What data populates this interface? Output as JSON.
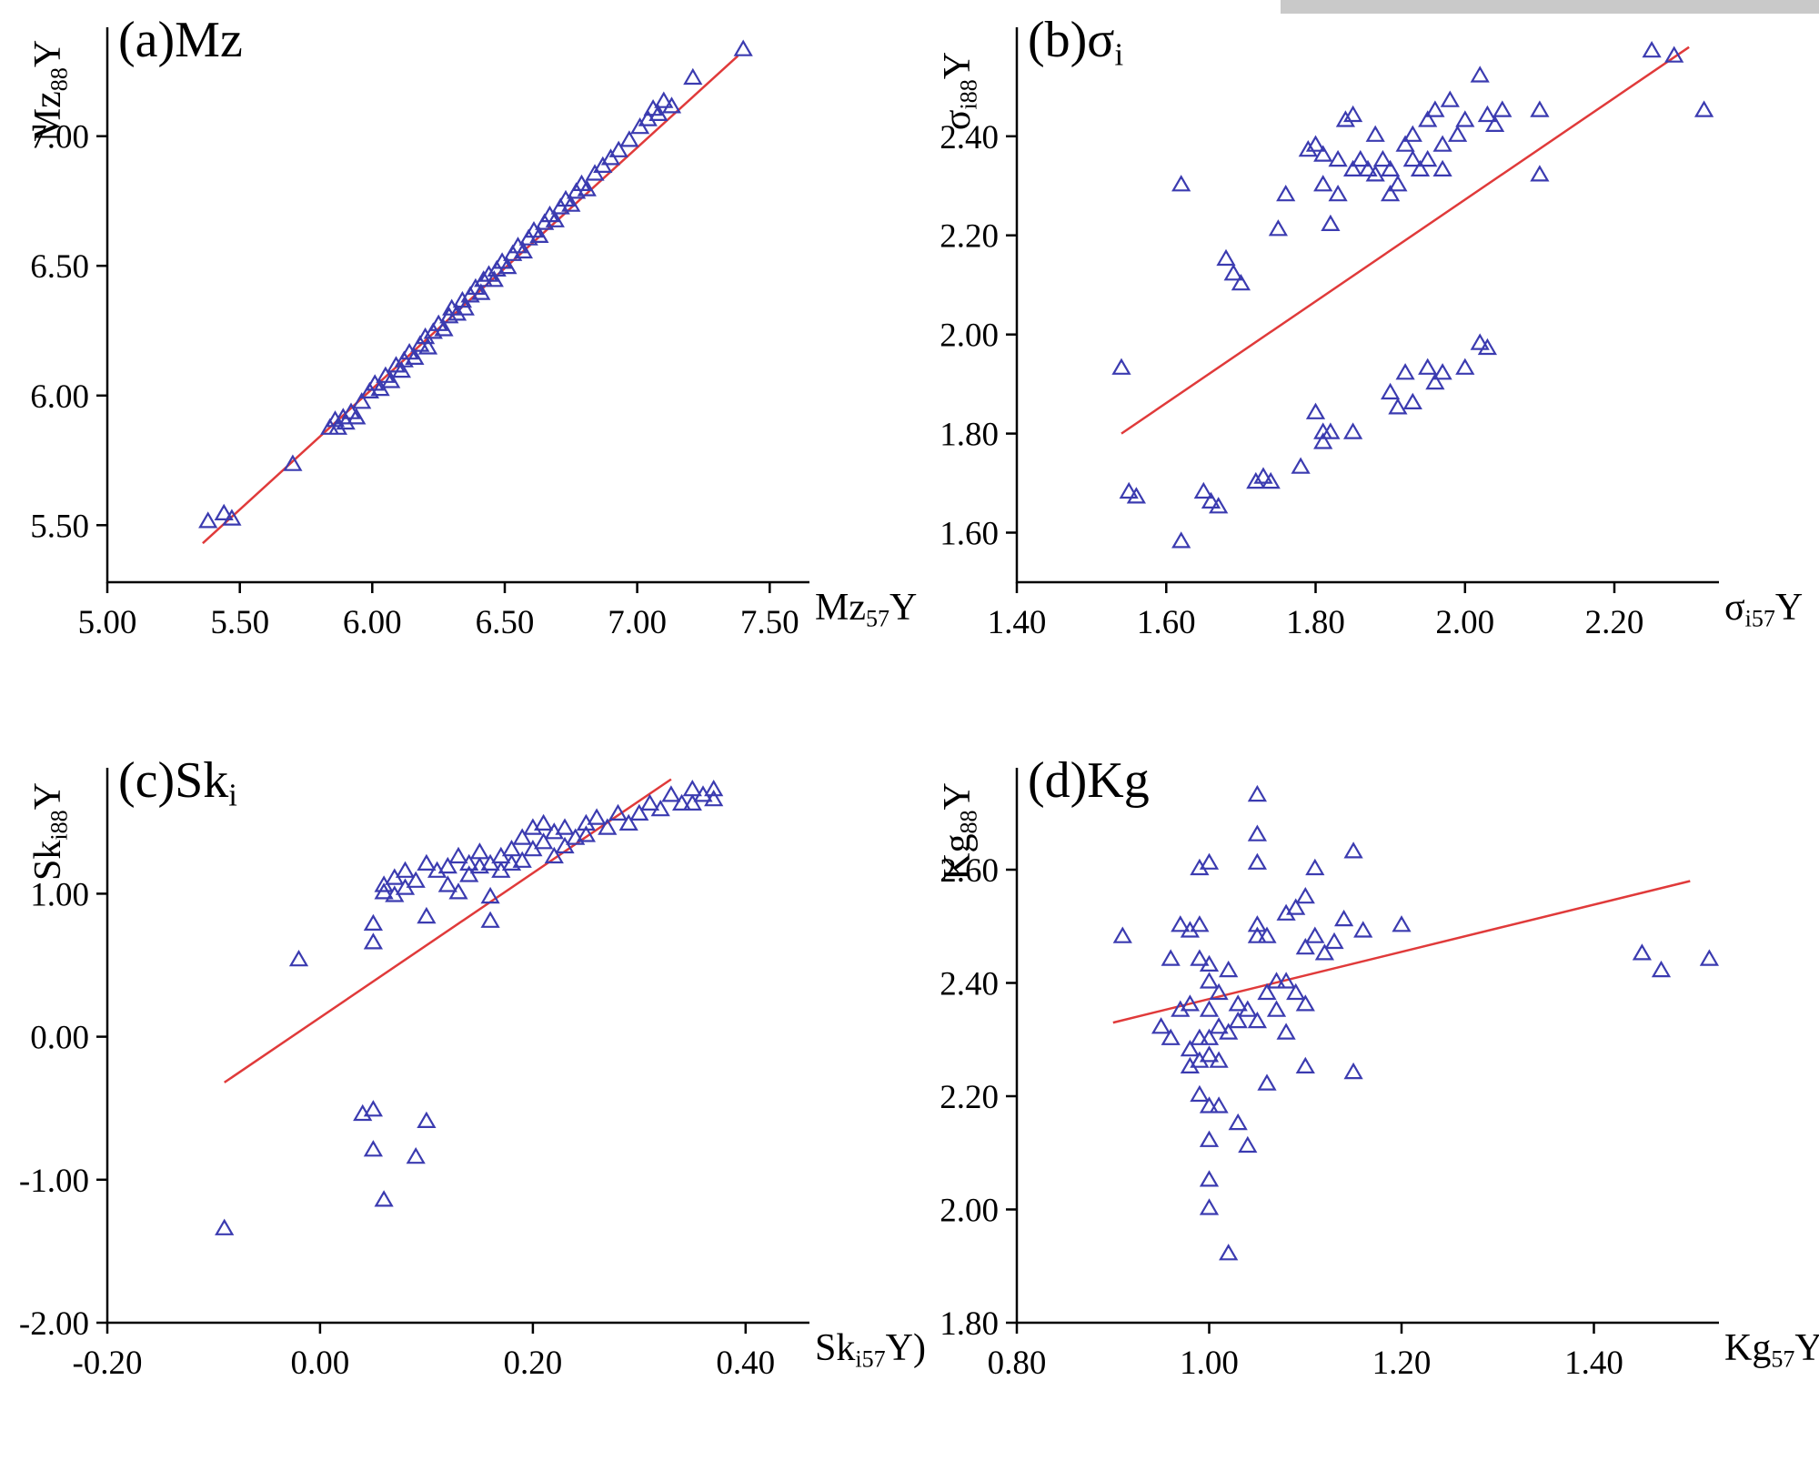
{
  "page": {
    "background": "#ffffff",
    "artifact_bar_color": "#c9c9c9"
  },
  "chart_data": [
    {
      "id": "a",
      "type": "scatter",
      "panel_label": {
        "pre": "(a)Mz",
        "sub": "",
        "post": ""
      },
      "xlabel": {
        "pre": "Mz",
        "sub": "57",
        "post": "Y"
      },
      "ylabel": {
        "pre": "Mz",
        "sub": "88",
        "post": "Y"
      },
      "xlim": [
        5.0,
        7.65
      ],
      "ylim": [
        5.28,
        7.42
      ],
      "xticks": {
        "values": [
          5.0,
          5.5,
          6.0,
          6.5,
          7.0,
          7.5
        ],
        "labels": [
          "5.00",
          "5.50",
          "6.00",
          "6.50",
          "7.00",
          "7.50"
        ]
      },
      "yticks": {
        "values": [
          5.5,
          6.0,
          6.5,
          7.0
        ],
        "labels": [
          "5.50",
          "6.00",
          "6.50",
          "7.00"
        ]
      },
      "trendline": {
        "x1": 5.36,
        "y1": 5.43,
        "x2": 7.38,
        "y2": 7.31
      },
      "marker_color": "#3b3bb0",
      "line_color": "#e03a3a",
      "points": [
        [
          5.38,
          5.51
        ],
        [
          5.44,
          5.54
        ],
        [
          5.47,
          5.52
        ],
        [
          5.7,
          5.73
        ],
        [
          5.84,
          5.87
        ],
        [
          5.86,
          5.9
        ],
        [
          5.87,
          5.87
        ],
        [
          5.89,
          5.91
        ],
        [
          5.9,
          5.89
        ],
        [
          5.92,
          5.93
        ],
        [
          5.94,
          5.91
        ],
        [
          5.96,
          5.97
        ],
        [
          5.99,
          6.01
        ],
        [
          6.01,
          6.04
        ],
        [
          6.03,
          6.02
        ],
        [
          6.05,
          6.07
        ],
        [
          6.07,
          6.05
        ],
        [
          6.09,
          6.11
        ],
        [
          6.11,
          6.09
        ],
        [
          6.12,
          6.13
        ],
        [
          6.14,
          6.16
        ],
        [
          6.16,
          6.14
        ],
        [
          6.18,
          6.19
        ],
        [
          6.2,
          6.22
        ],
        [
          6.21,
          6.18
        ],
        [
          6.23,
          6.24
        ],
        [
          6.25,
          6.27
        ],
        [
          6.27,
          6.25
        ],
        [
          6.29,
          6.3
        ],
        [
          6.3,
          6.33
        ],
        [
          6.32,
          6.31
        ],
        [
          6.34,
          6.36
        ],
        [
          6.35,
          6.33
        ],
        [
          6.37,
          6.38
        ],
        [
          6.39,
          6.41
        ],
        [
          6.41,
          6.39
        ],
        [
          6.42,
          6.44
        ],
        [
          6.44,
          6.46
        ],
        [
          6.46,
          6.44
        ],
        [
          6.47,
          6.48
        ],
        [
          6.49,
          6.51
        ],
        [
          6.51,
          6.49
        ],
        [
          6.53,
          6.54
        ],
        [
          6.55,
          6.57
        ],
        [
          6.57,
          6.55
        ],
        [
          6.59,
          6.6
        ],
        [
          6.61,
          6.63
        ],
        [
          6.63,
          6.61
        ],
        [
          6.65,
          6.66
        ],
        [
          6.67,
          6.69
        ],
        [
          6.69,
          6.67
        ],
        [
          6.71,
          6.72
        ],
        [
          6.73,
          6.75
        ],
        [
          6.75,
          6.73
        ],
        [
          6.77,
          6.78
        ],
        [
          6.79,
          6.81
        ],
        [
          6.81,
          6.79
        ],
        [
          6.84,
          6.85
        ],
        [
          6.87,
          6.88
        ],
        [
          6.9,
          6.91
        ],
        [
          6.93,
          6.94
        ],
        [
          6.97,
          6.98
        ],
        [
          7.01,
          7.03
        ],
        [
          7.04,
          7.06
        ],
        [
          7.06,
          7.1
        ],
        [
          7.08,
          7.08
        ],
        [
          7.1,
          7.13
        ],
        [
          7.13,
          7.11
        ],
        [
          7.21,
          7.22
        ],
        [
          7.4,
          7.33
        ]
      ]
    },
    {
      "id": "b",
      "type": "scatter",
      "panel_label": {
        "pre": "(b)σ",
        "sub": "i",
        "post": ""
      },
      "xlabel": {
        "pre": "σ",
        "sub": "i57",
        "post": "Y"
      },
      "ylabel": {
        "pre": "σ",
        "sub": "i88",
        "post": "Y"
      },
      "xlim": [
        1.4,
        2.34
      ],
      "ylim": [
        1.5,
        2.62
      ],
      "xticks": {
        "values": [
          1.4,
          1.6,
          1.8,
          2.0,
          2.2
        ],
        "labels": [
          "1.40",
          "1.60",
          "1.80",
          "2.00",
          "2.20"
        ]
      },
      "yticks": {
        "values": [
          1.6,
          1.8,
          2.0,
          2.2,
          2.4
        ],
        "labels": [
          "1.60",
          "1.80",
          "2.00",
          "2.20",
          "2.40"
        ]
      },
      "trendline": {
        "x1": 1.54,
        "y1": 1.8,
        "x2": 2.3,
        "y2": 2.58
      },
      "marker_color": "#3b3bb0",
      "line_color": "#e03a3a",
      "points": [
        [
          1.62,
          2.3
        ],
        [
          1.68,
          2.15
        ],
        [
          1.69,
          2.12
        ],
        [
          1.7,
          2.1
        ],
        [
          1.75,
          2.21
        ],
        [
          1.76,
          2.28
        ],
        [
          1.79,
          2.37
        ],
        [
          1.8,
          2.38
        ],
        [
          1.81,
          2.36
        ],
        [
          1.81,
          2.3
        ],
        [
          1.82,
          2.22
        ],
        [
          1.83,
          2.28
        ],
        [
          1.83,
          2.35
        ],
        [
          1.84,
          2.43
        ],
        [
          1.85,
          2.44
        ],
        [
          1.85,
          2.33
        ],
        [
          1.86,
          2.35
        ],
        [
          1.87,
          2.33
        ],
        [
          1.88,
          2.4
        ],
        [
          1.88,
          2.32
        ],
        [
          1.89,
          2.35
        ],
        [
          1.9,
          2.28
        ],
        [
          1.9,
          2.33
        ],
        [
          1.91,
          2.3
        ],
        [
          1.92,
          2.38
        ],
        [
          1.93,
          2.35
        ],
        [
          1.93,
          2.4
        ],
        [
          1.94,
          2.33
        ],
        [
          1.95,
          2.43
        ],
        [
          1.95,
          2.35
        ],
        [
          1.96,
          2.45
        ],
        [
          1.97,
          2.33
        ],
        [
          1.97,
          2.38
        ],
        [
          1.98,
          2.47
        ],
        [
          1.99,
          2.4
        ],
        [
          2.0,
          2.43
        ],
        [
          2.02,
          2.52
        ],
        [
          2.03,
          2.44
        ],
        [
          2.04,
          2.42
        ],
        [
          2.05,
          2.45
        ],
        [
          2.1,
          2.32
        ],
        [
          2.1,
          2.45
        ],
        [
          2.25,
          2.57
        ],
        [
          2.28,
          2.56
        ],
        [
          2.32,
          2.45
        ],
        [
          1.54,
          1.93
        ],
        [
          1.55,
          1.68
        ],
        [
          1.56,
          1.67
        ],
        [
          1.62,
          1.58
        ],
        [
          1.65,
          1.68
        ],
        [
          1.66,
          1.66
        ],
        [
          1.67,
          1.65
        ],
        [
          1.72,
          1.7
        ],
        [
          1.73,
          1.71
        ],
        [
          1.74,
          1.7
        ],
        [
          1.78,
          1.73
        ],
        [
          1.8,
          1.84
        ],
        [
          1.81,
          1.8
        ],
        [
          1.81,
          1.78
        ],
        [
          1.82,
          1.8
        ],
        [
          1.85,
          1.8
        ],
        [
          1.9,
          1.88
        ],
        [
          1.91,
          1.85
        ],
        [
          1.92,
          1.92
        ],
        [
          1.93,
          1.86
        ],
        [
          1.95,
          1.93
        ],
        [
          1.96,
          1.9
        ],
        [
          1.97,
          1.92
        ],
        [
          2.0,
          1.93
        ],
        [
          2.02,
          1.98
        ],
        [
          2.03,
          1.97
        ]
      ]
    },
    {
      "id": "c",
      "type": "scatter",
      "panel_label": {
        "pre": "(c)Sk",
        "sub": "i",
        "post": ""
      },
      "xlabel": {
        "pre": "Sk",
        "sub": "i57",
        "post": "Y)"
      },
      "ylabel": {
        "pre": "Sk",
        "sub": "i88",
        "post": "Y"
      },
      "xlim": [
        -0.2,
        0.46
      ],
      "ylim": [
        -2.0,
        1.88
      ],
      "xticks": {
        "values": [
          -0.2,
          0.0,
          0.2,
          0.4
        ],
        "labels": [
          "-0.20",
          "0.00",
          "0.20",
          "0.40"
        ]
      },
      "yticks": {
        "values": [
          -2.0,
          -1.0,
          0.0,
          1.0
        ],
        "labels": [
          "-2.00",
          "-1.00",
          "0.00",
          "1.00"
        ]
      },
      "trendline": {
        "x1": -0.09,
        "y1": -0.32,
        "x2": 0.33,
        "y2": 1.8
      },
      "marker_color": "#3b3bb0",
      "line_color": "#e03a3a",
      "points": [
        [
          -0.02,
          0.53
        ],
        [
          0.05,
          0.65
        ],
        [
          0.05,
          0.78
        ],
        [
          0.06,
          1.0
        ],
        [
          0.06,
          1.05
        ],
        [
          0.07,
          1.1
        ],
        [
          0.07,
          0.98
        ],
        [
          0.08,
          1.15
        ],
        [
          0.08,
          1.03
        ],
        [
          0.09,
          1.08
        ],
        [
          0.1,
          1.2
        ],
        [
          0.1,
          0.83
        ],
        [
          0.11,
          1.15
        ],
        [
          0.12,
          1.18
        ],
        [
          0.12,
          1.05
        ],
        [
          0.13,
          1.25
        ],
        [
          0.13,
          1.0
        ],
        [
          0.14,
          1.2
        ],
        [
          0.14,
          1.12
        ],
        [
          0.15,
          1.18
        ],
        [
          0.15,
          1.28
        ],
        [
          0.16,
          1.2
        ],
        [
          0.16,
          0.97
        ],
        [
          0.16,
          0.8
        ],
        [
          0.17,
          1.25
        ],
        [
          0.17,
          1.15
        ],
        [
          0.18,
          1.3
        ],
        [
          0.18,
          1.2
        ],
        [
          0.19,
          1.38
        ],
        [
          0.19,
          1.22
        ],
        [
          0.2,
          1.45
        ],
        [
          0.2,
          1.3
        ],
        [
          0.21,
          1.48
        ],
        [
          0.21,
          1.35
        ],
        [
          0.22,
          1.42
        ],
        [
          0.22,
          1.25
        ],
        [
          0.23,
          1.45
        ],
        [
          0.23,
          1.32
        ],
        [
          0.24,
          1.38
        ],
        [
          0.25,
          1.48
        ],
        [
          0.25,
          1.4
        ],
        [
          0.26,
          1.52
        ],
        [
          0.27,
          1.45
        ],
        [
          0.28,
          1.55
        ],
        [
          0.29,
          1.48
        ],
        [
          0.3,
          1.55
        ],
        [
          0.31,
          1.62
        ],
        [
          0.32,
          1.58
        ],
        [
          0.33,
          1.68
        ],
        [
          0.34,
          1.62
        ],
        [
          0.35,
          1.72
        ],
        [
          0.35,
          1.62
        ],
        [
          0.36,
          1.68
        ],
        [
          0.37,
          1.72
        ],
        [
          0.37,
          1.65
        ],
        [
          -0.09,
          -1.35
        ],
        [
          0.04,
          -0.55
        ],
        [
          0.05,
          -0.52
        ],
        [
          0.05,
          -0.8
        ],
        [
          0.06,
          -1.15
        ],
        [
          0.09,
          -0.85
        ],
        [
          0.1,
          -0.6
        ]
      ]
    },
    {
      "id": "d",
      "type": "scatter",
      "panel_label": {
        "pre": "(d)Kg",
        "sub": "",
        "post": ""
      },
      "xlabel": {
        "pre": "Kg",
        "sub": "57",
        "post": "Y"
      },
      "ylabel": {
        "pre": "Kg",
        "sub": "88",
        "post": "Y"
      },
      "xlim": [
        0.8,
        1.53
      ],
      "ylim": [
        1.8,
        2.78
      ],
      "xticks": {
        "values": [
          0.8,
          1.0,
          1.2,
          1.4
        ],
        "labels": [
          "0.80",
          "1.00",
          "1.20",
          "1.40"
        ]
      },
      "yticks": {
        "values": [
          1.8,
          2.0,
          2.2,
          2.4,
          2.6
        ],
        "labels": [
          "1.80",
          "2.00",
          "2.20",
          "2.40",
          "2.60"
        ]
      },
      "trendline": {
        "x1": 0.9,
        "y1": 2.33,
        "x2": 1.5,
        "y2": 2.58
      },
      "marker_color": "#3b3bb0",
      "line_color": "#e03a3a",
      "points": [
        [
          0.91,
          2.48
        ],
        [
          0.95,
          2.32
        ],
        [
          0.96,
          2.3
        ],
        [
          0.96,
          2.44
        ],
        [
          0.97,
          2.5
        ],
        [
          0.97,
          2.35
        ],
        [
          0.98,
          2.49
        ],
        [
          0.98,
          2.28
        ],
        [
          0.98,
          2.25
        ],
        [
          0.98,
          2.36
        ],
        [
          0.99,
          2.6
        ],
        [
          0.99,
          2.5
        ],
        [
          0.99,
          2.44
        ],
        [
          0.99,
          2.3
        ],
        [
          0.99,
          2.26
        ],
        [
          0.99,
          2.2
        ],
        [
          1.0,
          2.61
        ],
        [
          1.0,
          2.43
        ],
        [
          1.0,
          2.4
        ],
        [
          1.0,
          2.35
        ],
        [
          1.0,
          2.3
        ],
        [
          1.0,
          2.27
        ],
        [
          1.0,
          2.18
        ],
        [
          1.0,
          2.12
        ],
        [
          1.0,
          2.05
        ],
        [
          1.0,
          2.0
        ],
        [
          1.01,
          2.38
        ],
        [
          1.01,
          2.32
        ],
        [
          1.01,
          2.26
        ],
        [
          1.01,
          2.18
        ],
        [
          1.02,
          2.42
        ],
        [
          1.02,
          2.31
        ],
        [
          1.02,
          1.92
        ],
        [
          1.03,
          2.36
        ],
        [
          1.03,
          2.33
        ],
        [
          1.03,
          2.15
        ],
        [
          1.04,
          2.35
        ],
        [
          1.04,
          2.11
        ],
        [
          1.05,
          2.73
        ],
        [
          1.05,
          2.66
        ],
        [
          1.05,
          2.61
        ],
        [
          1.05,
          2.5
        ],
        [
          1.05,
          2.48
        ],
        [
          1.05,
          2.33
        ],
        [
          1.06,
          2.48
        ],
        [
          1.06,
          2.38
        ],
        [
          1.06,
          2.22
        ],
        [
          1.07,
          2.4
        ],
        [
          1.07,
          2.35
        ],
        [
          1.08,
          2.52
        ],
        [
          1.08,
          2.4
        ],
        [
          1.08,
          2.31
        ],
        [
          1.09,
          2.53
        ],
        [
          1.09,
          2.38
        ],
        [
          1.1,
          2.55
        ],
        [
          1.1,
          2.46
        ],
        [
          1.1,
          2.36
        ],
        [
          1.1,
          2.25
        ],
        [
          1.11,
          2.6
        ],
        [
          1.11,
          2.48
        ],
        [
          1.12,
          2.45
        ],
        [
          1.13,
          2.47
        ],
        [
          1.14,
          2.51
        ],
        [
          1.15,
          2.63
        ],
        [
          1.15,
          2.24
        ],
        [
          1.16,
          2.49
        ],
        [
          1.2,
          2.5
        ],
        [
          1.45,
          2.45
        ],
        [
          1.47,
          2.42
        ],
        [
          1.52,
          2.44
        ]
      ]
    }
  ]
}
